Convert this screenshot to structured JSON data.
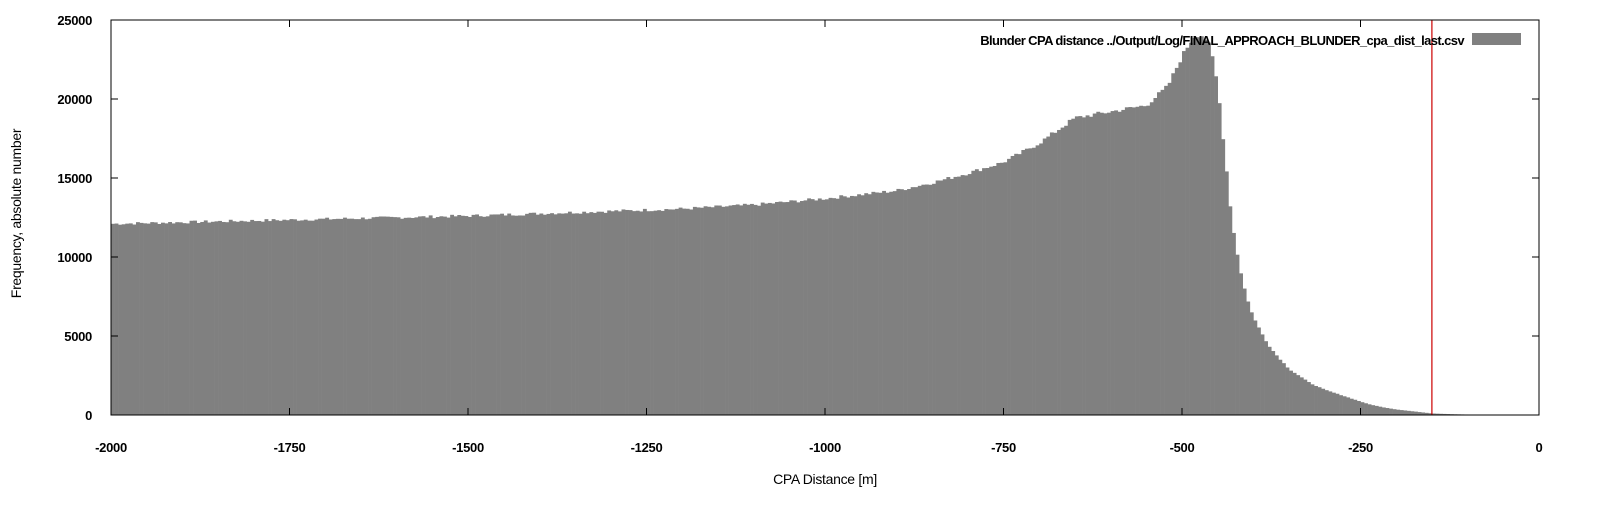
{
  "chart_data": {
    "type": "bar",
    "title": "",
    "xlabel": "CPA Distance [m]",
    "ylabel": "Frequency, absolute number",
    "xlim": [
      -2000,
      0
    ],
    "ylim": [
      0,
      25000
    ],
    "x_ticks": [
      -2000,
      -1750,
      -1500,
      -1250,
      -1000,
      -750,
      -500,
      -250,
      0
    ],
    "y_ticks": [
      0,
      5000,
      10000,
      15000,
      20000,
      25000
    ],
    "grid": false,
    "legend": {
      "position": "top-right"
    },
    "colors": {
      "bars": "#808080",
      "reference_line": "#cc0000",
      "frame": "#000000"
    },
    "series": [
      {
        "name": "Blunder CPA distance ../Output/Log/FINAL_APPROACH_BLUNDER_cpa_dist_last.csv",
        "bin_width": 5,
        "profile": {
          "x": [
            -2000,
            -1900,
            -1800,
            -1700,
            -1600,
            -1500,
            -1400,
            -1300,
            -1200,
            -1100,
            -1000,
            -900,
            -850,
            -800,
            -750,
            -700,
            -650,
            -600,
            -550,
            -520,
            -500,
            -490,
            -480,
            -470,
            -460,
            -450,
            -440,
            -430,
            -420,
            -410,
            -400,
            -390,
            -380,
            -370,
            -360,
            -350,
            -340,
            -330,
            -320,
            -310,
            -300,
            -280,
            -260,
            -250,
            -240,
            -220,
            -200,
            -180,
            -160,
            -150,
            -140,
            -120,
            -100,
            -50,
            0
          ],
          "y": [
            12100,
            12200,
            12300,
            12400,
            12500,
            12600,
            12750,
            12900,
            13050,
            13300,
            13700,
            14200,
            14700,
            15300,
            16000,
            17200,
            18800,
            19200,
            19600,
            20800,
            22700,
            23500,
            24100,
            24000,
            23200,
            20800,
            16500,
            12200,
            9500,
            7500,
            6200,
            5300,
            4500,
            3900,
            3400,
            2900,
            2600,
            2300,
            2000,
            1800,
            1600,
            1300,
            1000,
            850,
            700,
            500,
            350,
            250,
            150,
            100,
            80,
            50,
            30,
            10,
            0
          ]
        }
      }
    ],
    "annotations": [
      {
        "type": "vertical-line",
        "x": -150
      }
    ]
  }
}
